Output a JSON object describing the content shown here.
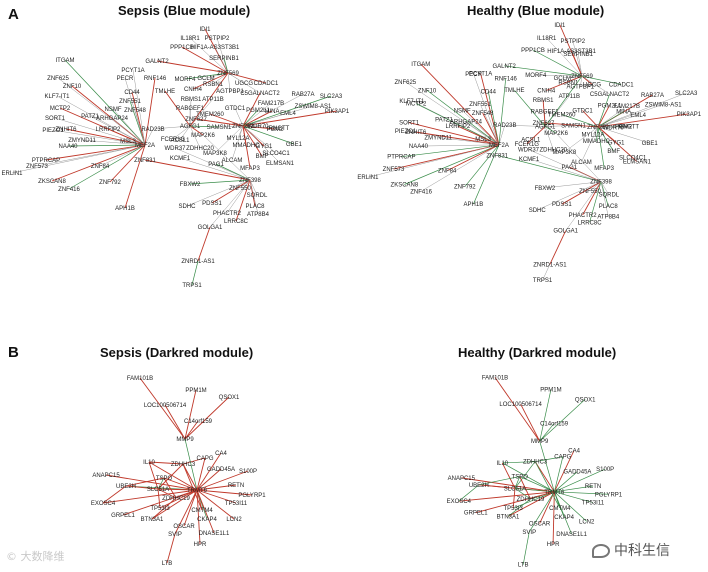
{
  "panels": [
    {
      "letter": "A",
      "networks": [
        {
          "title": "Sepsis (Blue module)"
        },
        {
          "title": "Healthy (Blue module)"
        }
      ]
    },
    {
      "letter": "B",
      "networks": [
        {
          "title": "Sepsis (Darkred module)"
        },
        {
          "title": "Healthy (Darkred module)"
        }
      ]
    }
  ],
  "blue_genes": [
    "IDI1",
    "IL18R1",
    "PSTPIP2",
    "PPP1CB",
    "HIF1A-AS3ST3B1",
    "SERPINB1",
    "GALNT2",
    "ITGAM",
    "PCYT1A",
    "UGCG",
    "CDADC1",
    "ZNF569",
    "ZNF625",
    "PECR",
    "RNF146",
    "MORF4",
    "RSBN1",
    "GCLM",
    "CNIH4",
    "AGTPBP1",
    "C5GALNACT2",
    "RAB27A",
    "SLC2A3",
    "ZNF10",
    "CD44",
    "TMLHE",
    "RBMS1",
    "ATP11B",
    "FAM217B",
    "ZSWIM8-AS1",
    "PIK3AP1",
    "KLF7-IT1",
    "ZNF551",
    "GTDC1",
    "MINA",
    "EML4",
    "SORT1",
    "MCTP2",
    "NSMF",
    "ZNF548",
    "RABGEF1",
    "PGM2L1",
    "PGM2",
    "PATZ1",
    "ARHGAP24",
    "ZNF627",
    "TMEM260",
    "WDR70",
    "PIEZO1",
    "ZNHIT6",
    "LRRFIP2",
    "AGFG1",
    "SAMSN1",
    "ZNF262",
    "RNGTT",
    "ZMYND11",
    "RAD23B",
    "MAP2K6",
    "MYL12A",
    "GYG1",
    "GBE1",
    "ACSL1",
    "FCER1G",
    "MMADHC",
    "NAA40",
    "MSL3",
    "MEF2A",
    "WDR37",
    "ZDHHC20",
    "BMF",
    "SLCO4C1",
    "PTPRCAP",
    "ZNF831",
    "KCMF1",
    "MAP3K8",
    "ALCAM",
    "ELMSAN1",
    "ZNF573",
    "ZNF84",
    "PAG1",
    "MFAP3",
    "ERLIN1",
    "ZKSCAN8",
    "FBXW2",
    "ZNF416",
    "ZNF792",
    "ZNF398",
    "ZNF550",
    "PDSS1",
    "SQRDL",
    "APH1B",
    "SDHC",
    "PLAC8",
    "PHACTR2",
    "ATP8B4",
    "LRRC8C",
    "GOLGA1",
    "ZNRD1-AS1",
    "TRPS1"
  ],
  "darkred_genes": [
    "FAM101B",
    "PPM1M",
    "QSOX1",
    "LOC100506714",
    "C14orf159",
    "MMP9",
    "CA4",
    "CAPG",
    "IL10",
    "ZDHHC3",
    "GADD45A",
    "S100P",
    "ANAPC15",
    "TSPO",
    "RETN",
    "UBE2H",
    "SLC51A",
    "TRMT6",
    "PGLYRP1",
    "EXOSC4",
    "ZDHHC19",
    "TP53I11",
    "GRPEL1",
    "TP53I3",
    "CMTM4",
    "BTN3A1",
    "CKAP4",
    "LCN2",
    "OSCAR",
    "SVIP",
    "DNASE1L1",
    "HPR",
    "LTB"
  ],
  "edge_colors": {
    "correlation_positive": "#c0392b",
    "correlation_negative": "#3a8d4a",
    "other": "#9a9a9a"
  },
  "watermark_left": "© 大数降维",
  "watermark_right": "中科生信"
}
